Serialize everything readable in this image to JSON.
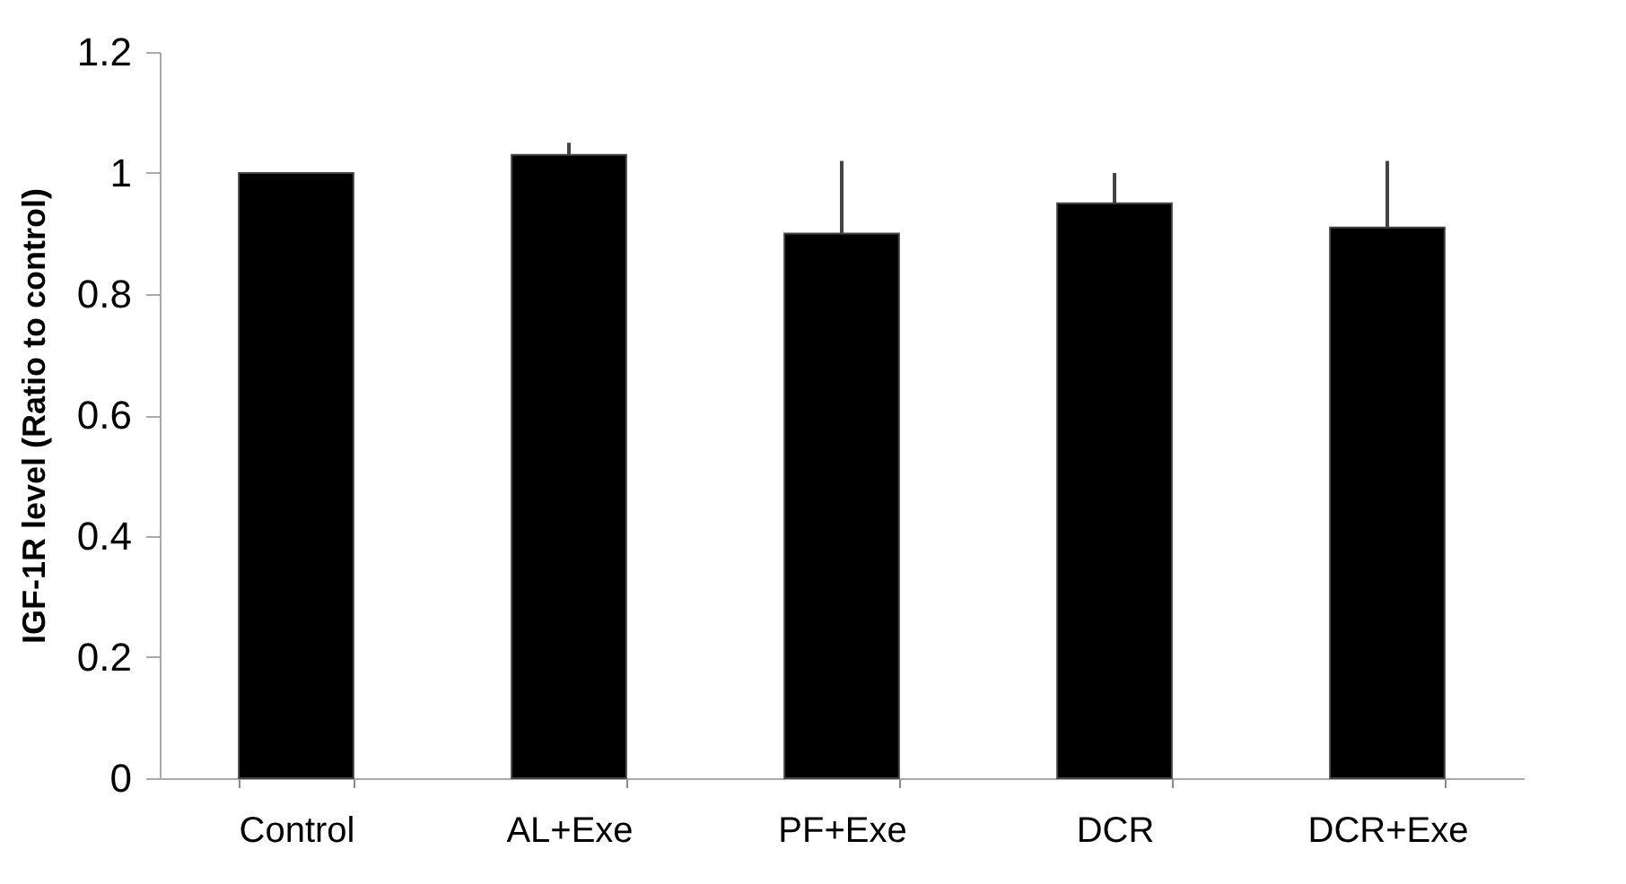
{
  "chart_data": {
    "type": "bar",
    "ylabel": "IGF-1R level (Ratio to control)",
    "categories": [
      "Control",
      "AL+Exe",
      "PF+Exe",
      "DCR",
      "DCR+Exe"
    ],
    "values": [
      1.0,
      1.03,
      0.9,
      0.95,
      0.91
    ],
    "color": "#000000",
    "errors": [
      null,
      [
        1.03,
        1.05
      ],
      [
        0.9,
        1.02
      ],
      [
        0.95,
        1.0
      ],
      [
        0.91,
        1.02
      ]
    ],
    "ylim": [
      0,
      1.2
    ],
    "yticks": [
      0,
      0.2,
      0.4,
      0.6,
      0.8,
      1,
      1.2
    ],
    "grid": false
  }
}
